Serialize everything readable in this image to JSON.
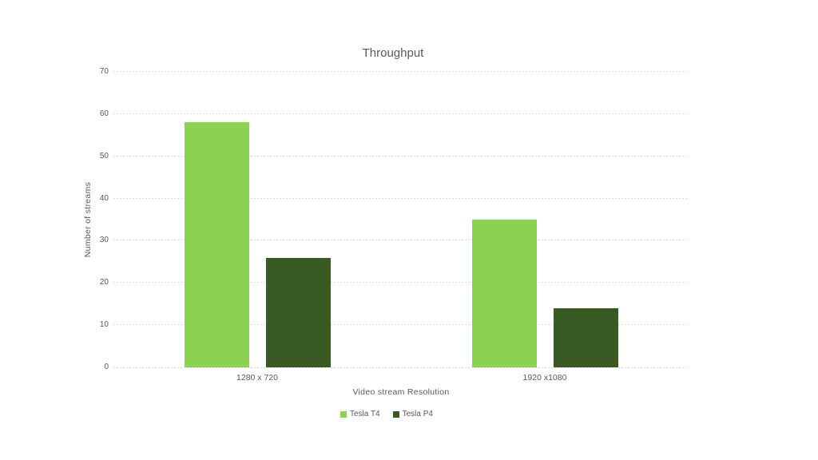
{
  "colors": {
    "background": "#FFFFFF",
    "gridline": "#DCDCDC",
    "text": "#595959",
    "t4_green": "#8CD250",
    "p4_dark_green": "#3A5A23"
  },
  "chart_data": {
    "type": "bar",
    "title": "Throughput",
    "categories": [
      "1280 x 720",
      "1920 x1080"
    ],
    "series": [
      {
        "name": "Tesla T4",
        "color": "#8CD250",
        "values": [
          58,
          35
        ]
      },
      {
        "name": "Tesla P4",
        "color": "#3A5A23",
        "values": [
          26,
          14
        ]
      }
    ],
    "xlabel": "Video stream Resolution",
    "ylabel": "Number of streams",
    "ylim": [
      0,
      70
    ],
    "ytick_step": 10,
    "yticks": [
      0,
      10,
      20,
      30,
      40,
      50,
      60,
      70
    ],
    "grid": true,
    "legend_position": "bottom"
  }
}
